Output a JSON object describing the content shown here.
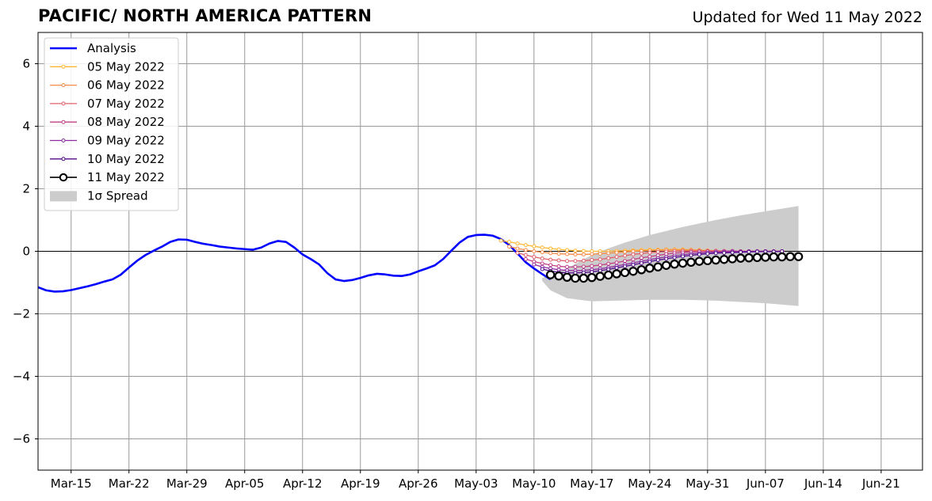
{
  "header": {
    "title": "PACIFIC/ NORTH AMERICA PATTERN",
    "updated": "Updated for Wed 11 May 2022"
  },
  "chart_data": {
    "type": "line",
    "x_axis_type": "date",
    "xlim": [
      "2022-03-11",
      "2022-06-26"
    ],
    "ylim": [
      -7,
      7
    ],
    "grid": true,
    "legend_position": "top-left",
    "x_ticks": [
      {
        "date": "2022-03-15",
        "label": "Mar-15"
      },
      {
        "date": "2022-03-22",
        "label": "Mar-22"
      },
      {
        "date": "2022-03-29",
        "label": "Mar-29"
      },
      {
        "date": "2022-04-05",
        "label": "Apr-05"
      },
      {
        "date": "2022-04-12",
        "label": "Apr-12"
      },
      {
        "date": "2022-04-19",
        "label": "Apr-19"
      },
      {
        "date": "2022-04-26",
        "label": "Apr-26"
      },
      {
        "date": "2022-05-03",
        "label": "May-03"
      },
      {
        "date": "2022-05-10",
        "label": "May-10"
      },
      {
        "date": "2022-05-17",
        "label": "May-17"
      },
      {
        "date": "2022-05-24",
        "label": "May-24"
      },
      {
        "date": "2022-05-31",
        "label": "May-31"
      },
      {
        "date": "2022-06-07",
        "label": "Jun-07"
      },
      {
        "date": "2022-06-14",
        "label": "Jun-14"
      },
      {
        "date": "2022-06-21",
        "label": "Jun-21"
      }
    ],
    "y_ticks": [
      {
        "value": -6,
        "label": "−6"
      },
      {
        "value": -4,
        "label": "−4"
      },
      {
        "value": -2,
        "label": "−2"
      },
      {
        "value": 0,
        "label": "0"
      },
      {
        "value": 2,
        "label": "2"
      },
      {
        "value": 4,
        "label": "4"
      },
      {
        "value": 6,
        "label": "6"
      }
    ],
    "analysis": {
      "name": "Analysis",
      "color": "#0000ff",
      "start": "2022-03-11",
      "values": [
        -1.15,
        -1.25,
        -1.29,
        -1.28,
        -1.24,
        -1.18,
        -1.12,
        -1.05,
        -0.97,
        -0.9,
        -0.75,
        -0.52,
        -0.3,
        -0.12,
        0.02,
        0.15,
        0.3,
        0.38,
        0.37,
        0.3,
        0.24,
        0.2,
        0.15,
        0.12,
        0.09,
        0.07,
        0.05,
        0.12,
        0.25,
        0.33,
        0.3,
        0.12,
        -0.1,
        -0.25,
        -0.42,
        -0.7,
        -0.9,
        -0.95,
        -0.92,
        -0.85,
        -0.77,
        -0.72,
        -0.74,
        -0.78,
        -0.79,
        -0.74,
        -0.64,
        -0.55,
        -0.45,
        -0.25,
        0.02,
        0.28,
        0.46,
        0.52,
        0.53,
        0.5,
        0.39,
        0.2,
        -0.07,
        -0.35,
        -0.55,
        -0.73,
        -0.9
      ]
    },
    "forecasts": [
      {
        "name": "05 May 2022",
        "color": "#ffb733",
        "start": "2022-05-06",
        "values": [
          0.34,
          0.3,
          0.25,
          0.2,
          0.16,
          0.12,
          0.09,
          0.06,
          0.04,
          0.02,
          0.01,
          0.0,
          0.0,
          0.0,
          0.01,
          0.02,
          0.03,
          0.04,
          0.05,
          0.05,
          0.06,
          0.06,
          0.06,
          0.05,
          0.04,
          0.03,
          0.02,
          0.01,
          0.0,
          0.0,
          0.0,
          0.0,
          0.0,
          0.0,
          0.0
        ]
      },
      {
        "name": "06 May 2022",
        "color": "#f78d4a",
        "start": "2022-05-07",
        "values": [
          0.15,
          0.09,
          0.04,
          0.0,
          -0.03,
          -0.06,
          -0.08,
          -0.09,
          -0.1,
          -0.1,
          -0.09,
          -0.08,
          -0.06,
          -0.04,
          -0.02,
          0.0,
          0.01,
          0.02,
          0.03,
          0.04,
          0.04,
          0.04,
          0.04,
          0.03,
          0.02,
          0.01,
          0.0,
          0.0,
          0.0,
          0.0,
          0.0,
          0.0,
          0.0,
          0.0
        ]
      },
      {
        "name": "07 May 2022",
        "color": "#e0606a",
        "start": "2022-05-08",
        "values": [
          -0.05,
          -0.12,
          -0.18,
          -0.23,
          -0.27,
          -0.29,
          -0.31,
          -0.31,
          -0.3,
          -0.28,
          -0.26,
          -0.22,
          -0.18,
          -0.14,
          -0.1,
          -0.07,
          -0.04,
          -0.02,
          -0.01,
          0.0,
          0.01,
          0.01,
          0.01,
          0.01,
          0.01,
          0.0,
          0.0,
          0.0,
          0.0,
          0.0,
          0.0,
          0.0,
          0.0
        ]
      },
      {
        "name": "08 May 2022",
        "color": "#c13f86",
        "start": "2022-05-09",
        "values": [
          -0.25,
          -0.33,
          -0.39,
          -0.44,
          -0.48,
          -0.5,
          -0.5,
          -0.49,
          -0.47,
          -0.44,
          -0.4,
          -0.36,
          -0.31,
          -0.26,
          -0.21,
          -0.17,
          -0.13,
          -0.09,
          -0.06,
          -0.04,
          -0.02,
          -0.01,
          0.0,
          0.01,
          0.01,
          0.01,
          0.0,
          0.0,
          0.0,
          0.0,
          0.0,
          0.0
        ]
      },
      {
        "name": "09 May 2022",
        "color": "#8e2aa0",
        "start": "2022-05-10",
        "values": [
          -0.42,
          -0.5,
          -0.55,
          -0.59,
          -0.61,
          -0.62,
          -0.61,
          -0.59,
          -0.56,
          -0.52,
          -0.47,
          -0.42,
          -0.37,
          -0.32,
          -0.27,
          -0.22,
          -0.18,
          -0.14,
          -0.11,
          -0.08,
          -0.06,
          -0.04,
          -0.03,
          -0.02,
          -0.01,
          -0.01,
          0.0,
          0.0,
          0.0,
          0.0,
          0.0
        ]
      },
      {
        "name": "10 May 2022",
        "color": "#500a8a",
        "start": "2022-05-11",
        "values": [
          -0.57,
          -0.63,
          -0.67,
          -0.69,
          -0.69,
          -0.68,
          -0.66,
          -0.62,
          -0.58,
          -0.53,
          -0.48,
          -0.43,
          -0.38,
          -0.33,
          -0.28,
          -0.24,
          -0.2,
          -0.16,
          -0.13,
          -0.1,
          -0.08,
          -0.06,
          -0.05,
          -0.04,
          -0.03,
          -0.02,
          -0.01,
          -0.01,
          -0.01,
          0.0
        ]
      }
    ],
    "latest_forecast": {
      "name": "11 May 2022",
      "color": "#000000",
      "marker_fill": "#ffffff",
      "start": "2022-05-12",
      "values": [
        -0.75,
        -0.79,
        -0.83,
        -0.86,
        -0.86,
        -0.84,
        -0.8,
        -0.76,
        -0.72,
        -0.68,
        -0.64,
        -0.59,
        -0.54,
        -0.5,
        -0.45,
        -0.41,
        -0.38,
        -0.35,
        -0.32,
        -0.3,
        -0.28,
        -0.26,
        -0.24,
        -0.22,
        -0.21,
        -0.2,
        -0.19,
        -0.18,
        -0.18,
        -0.17,
        -0.17
      ]
    },
    "spread": {
      "name": "1σ Spread",
      "color": "#cccccc",
      "start": "2022-05-11",
      "end": "2022-06-11",
      "upper": [
        {
          "date": "2022-05-11",
          "value": -0.85
        },
        {
          "date": "2022-05-14",
          "value": -0.55
        },
        {
          "date": "2022-05-16",
          "value": -0.25
        },
        {
          "date": "2022-05-18",
          "value": 0.0
        },
        {
          "date": "2022-05-21",
          "value": 0.28
        },
        {
          "date": "2022-05-24",
          "value": 0.52
        },
        {
          "date": "2022-05-28",
          "value": 0.78
        },
        {
          "date": "2022-06-01",
          "value": 1.0
        },
        {
          "date": "2022-06-04",
          "value": 1.15
        },
        {
          "date": "2022-06-07",
          "value": 1.28
        },
        {
          "date": "2022-06-11",
          "value": 1.45
        }
      ],
      "lower": [
        {
          "date": "2022-06-11",
          "value": -1.75
        },
        {
          "date": "2022-06-07",
          "value": -1.66
        },
        {
          "date": "2022-06-01",
          "value": -1.58
        },
        {
          "date": "2022-05-28",
          "value": -1.55
        },
        {
          "date": "2022-05-24",
          "value": -1.55
        },
        {
          "date": "2022-05-20",
          "value": -1.58
        },
        {
          "date": "2022-05-17",
          "value": -1.6
        },
        {
          "date": "2022-05-14",
          "value": -1.5
        },
        {
          "date": "2022-05-12",
          "value": -1.25
        },
        {
          "date": "2022-05-11",
          "value": -0.95
        }
      ]
    }
  }
}
